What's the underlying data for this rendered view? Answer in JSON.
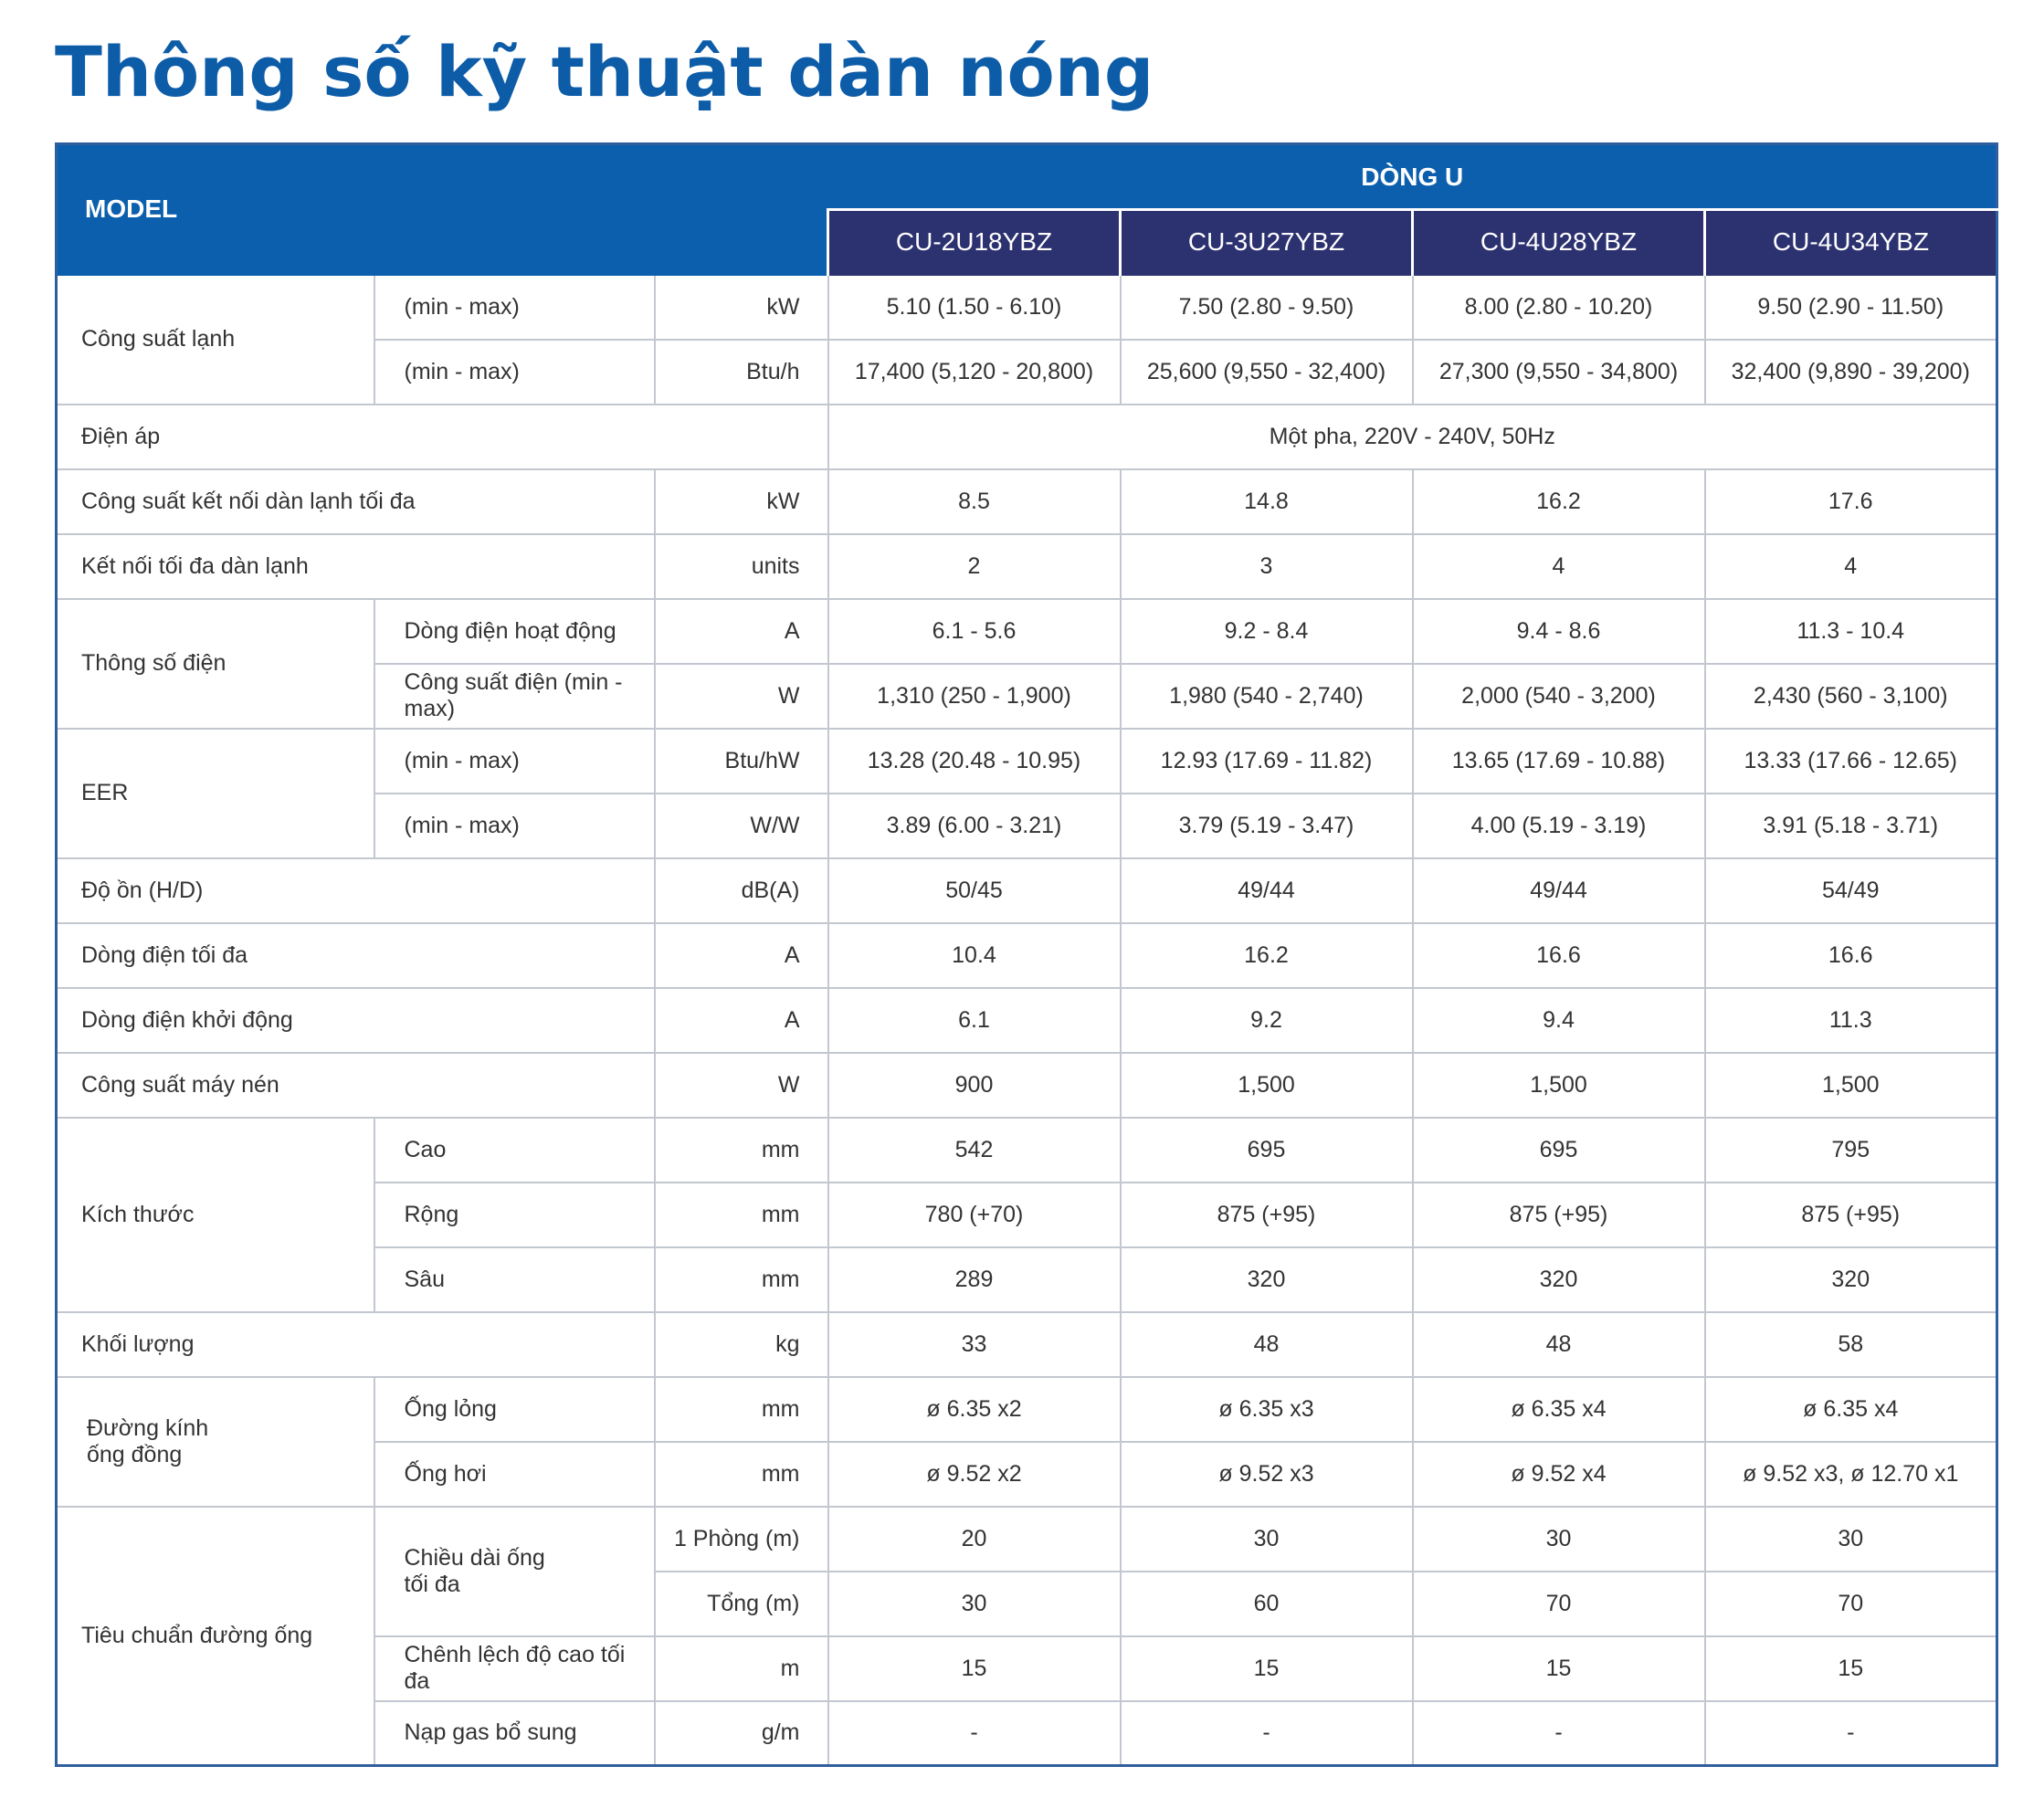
{
  "title": "Thông số kỹ thuật dàn nóng",
  "header": {
    "model": "MODEL",
    "series": "DÒNG U",
    "models": [
      "CU-2U18YBZ",
      "CU-3U27YBZ",
      "CU-4U28YBZ",
      "CU-4U34YBZ"
    ]
  },
  "rows": {
    "cooling": {
      "label": "Công suất lạnh",
      "kw": {
        "sub": "(min - max)",
        "unit": "kW",
        "values": [
          "5.10 (1.50 - 6.10)",
          "7.50 (2.80 - 9.50)",
          "8.00 (2.80 - 10.20)",
          "9.50 (2.90 - 11.50)"
        ]
      },
      "btu": {
        "sub": "(min - max)",
        "unit": "Btu/h",
        "values": [
          "17,400 (5,120 - 20,800)",
          "25,600 (9,550 - 32,400)",
          "27,300 (9,550 - 34,800)",
          "32,400 (9,890 - 39,200)"
        ]
      }
    },
    "voltage": {
      "label": "Điện áp",
      "value": "Một pha, 220V - 240V, 50Hz"
    },
    "max_indoor_capacity": {
      "label": "Công suất kết nối dàn lạnh tối đa",
      "unit": "kW",
      "values": [
        "8.5",
        "14.8",
        "16.2",
        "17.6"
      ]
    },
    "max_indoor_units": {
      "label": "Kết nối tối đa dàn lạnh",
      "unit": "units",
      "values": [
        "2",
        "3",
        "4",
        "4"
      ]
    },
    "electrical": {
      "label": "Thông số điện",
      "current": {
        "sub": "Dòng điện hoạt động",
        "unit": "A",
        "values": [
          "6.1 - 5.6",
          "9.2 - 8.4",
          "9.4 - 8.6",
          "11.3 - 10.4"
        ]
      },
      "power": {
        "sub": "Công suất điện (min - max)",
        "unit": "W",
        "values": [
          "1,310 (250 - 1,900)",
          "1,980 (540 - 2,740)",
          "2,000 (540 - 3,200)",
          "2,430 (560 - 3,100)"
        ]
      }
    },
    "eer": {
      "label": "EER",
      "btuhw": {
        "sub": "(min - max)",
        "unit": "Btu/hW",
        "values": [
          "13.28 (20.48 - 10.95)",
          "12.93 (17.69 - 11.82)",
          "13.65 (17.69 - 10.88)",
          "13.33 (17.66 - 12.65)"
        ]
      },
      "ww": {
        "sub": "(min - max)",
        "unit": "W/W",
        "values": [
          "3.89 (6.00 - 3.21)",
          "3.79 (5.19 - 3.47)",
          "4.00 (5.19 - 3.19)",
          "3.91 (5.18 - 3.71)"
        ]
      }
    },
    "noise": {
      "label": "Độ ồn (H/D)",
      "unit": "dB(A)",
      "values": [
        "50/45",
        "49/44",
        "49/44",
        "54/49"
      ]
    },
    "max_current": {
      "label": "Dòng điện tối đa",
      "unit": "A",
      "values": [
        "10.4",
        "16.2",
        "16.6",
        "16.6"
      ]
    },
    "start_current": {
      "label": "Dòng điện khởi động",
      "unit": "A",
      "values": [
        "6.1",
        "9.2",
        "9.4",
        "11.3"
      ]
    },
    "compressor": {
      "label": "Công suất máy nén",
      "unit": "W",
      "values": [
        "900",
        "1,500",
        "1,500",
        "1,500"
      ]
    },
    "dimensions": {
      "label": "Kích thước",
      "height": {
        "sub": "Cao",
        "unit": "mm",
        "values": [
          "542",
          "695",
          "695",
          "795"
        ]
      },
      "width": {
        "sub": "Rộng",
        "unit": "mm",
        "values": [
          "780 (+70)",
          "875 (+95)",
          "875 (+95)",
          "875 (+95)"
        ]
      },
      "depth": {
        "sub": "Sâu",
        "unit": "mm",
        "values": [
          "289",
          "320",
          "320",
          "320"
        ]
      }
    },
    "weight": {
      "label": "Khối lượng",
      "unit": "kg",
      "values": [
        "33",
        "48",
        "48",
        "58"
      ]
    },
    "pipe_diameter": {
      "label_line1": "Đường kính",
      "label_line2": "ống đồng",
      "liquid": {
        "sub": "Ống lỏng",
        "unit": "mm",
        "values": [
          "ø 6.35 x2",
          "ø 6.35 x3",
          "ø 6.35 x4",
          "ø 6.35 x4"
        ]
      },
      "gas": {
        "sub": "Ống hơi",
        "unit": "mm",
        "values": [
          "ø 9.52 x2",
          "ø 9.52 x3",
          "ø 9.52 x4",
          "ø 9.52 x3, ø 12.70 x1"
        ]
      }
    },
    "piping": {
      "label": "Tiêu chuẩn đường ống",
      "max_length_line1": "Chiều dài ống",
      "max_length_line2": "tối đa",
      "per_room": {
        "unit": "1 Phòng (m)",
        "values": [
          "20",
          "30",
          "30",
          "30"
        ]
      },
      "total": {
        "unit": "Tổng (m)",
        "values": [
          "30",
          "60",
          "70",
          "70"
        ]
      },
      "height_diff": {
        "sub": "Chênh lệch độ cao tối đa",
        "unit": "m",
        "values": [
          "15",
          "15",
          "15",
          "15"
        ]
      },
      "gas_charge": {
        "sub": "Nạp gas bổ sung",
        "unit": "g/m",
        "values": [
          "-",
          "-",
          "-",
          "-"
        ]
      }
    }
  }
}
